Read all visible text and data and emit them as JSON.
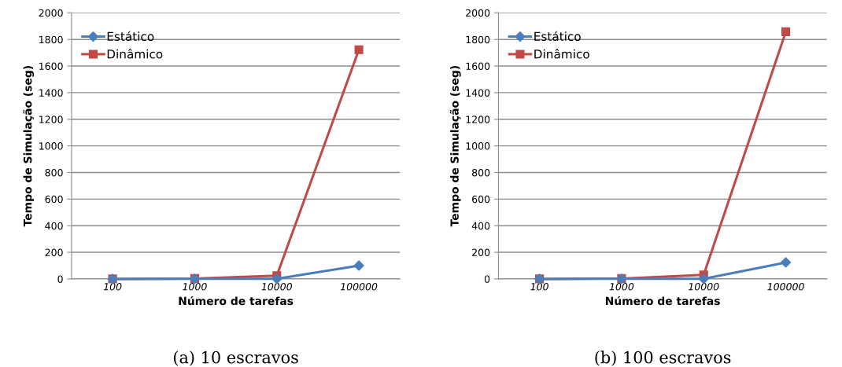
{
  "chart_data": [
    {
      "type": "line",
      "xlabel": "Número de tarefas",
      "ylabel": "Tempo de Simulação (seg)",
      "categories": [
        "100",
        "1000",
        "10000",
        "100000"
      ],
      "ylim": [
        0,
        2000
      ],
      "yticks": [
        0,
        200,
        400,
        600,
        800,
        1000,
        1200,
        1400,
        1600,
        1800,
        2000
      ],
      "grid": "y",
      "legend": "top left",
      "annotations": [
        "(a) 10 escravos"
      ],
      "series": [
        {
          "name": "Estático",
          "color": "#4a7ebb",
          "marker": "diamond",
          "values": [
            0,
            1,
            1,
            100
          ]
        },
        {
          "name": "Dinâmico",
          "color": "#be4b48",
          "marker": "square",
          "values": [
            0,
            3,
            25,
            1723
          ]
        }
      ]
    },
    {
      "type": "line",
      "xlabel": "Número de tarefas",
      "ylabel": "Tempo de Simulação (seg)",
      "categories": [
        "100",
        "1000",
        "10000",
        "100000"
      ],
      "ylim": [
        0,
        2000
      ],
      "yticks": [
        0,
        200,
        400,
        600,
        800,
        1000,
        1200,
        1400,
        1600,
        1800,
        2000
      ],
      "grid": "y",
      "legend": "top left",
      "annotations": [
        "(b) 100 escravos"
      ],
      "series": [
        {
          "name": "Estático",
          "color": "#4a7ebb",
          "marker": "diamond",
          "values": [
            0,
            1,
            1,
            124
          ]
        },
        {
          "name": "Dinâmico",
          "color": "#be4b48",
          "marker": "square",
          "values": [
            0,
            3,
            30,
            1858
          ]
        }
      ]
    }
  ]
}
